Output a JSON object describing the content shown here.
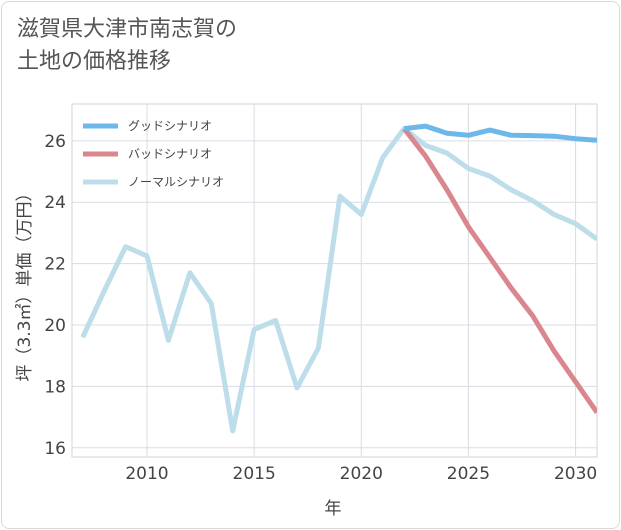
{
  "title": "滋賀県大津市南志賀の\n土地の価格推移",
  "chart_data": {
    "type": "line",
    "xlabel": "年",
    "ylabel": "坪（3.3㎡）単価（万円）",
    "xlim": [
      2006.5,
      2031
    ],
    "ylim": [
      15.7,
      27.2
    ],
    "xticks": [
      2010,
      2015,
      2020,
      2025,
      2030
    ],
    "yticks": [
      16,
      18,
      20,
      22,
      24,
      26
    ],
    "grid": true,
    "legend_position": "top-left",
    "series": [
      {
        "name": "グッドシナリオ",
        "color": "#6cb8ea",
        "x": [
          2022,
          2023,
          2024,
          2025,
          2026,
          2027,
          2028,
          2029,
          2030,
          2031
        ],
        "values": [
          26.4,
          26.48,
          26.25,
          26.18,
          26.35,
          26.18,
          26.17,
          26.15,
          26.07,
          26.02
        ]
      },
      {
        "name": "バッドシナリオ",
        "color": "#d9868e",
        "x": [
          2022,
          2023,
          2024,
          2025,
          2026,
          2027,
          2028,
          2029,
          2030,
          2031
        ],
        "values": [
          26.4,
          25.5,
          24.4,
          23.2,
          22.2,
          21.2,
          20.3,
          19.15,
          18.15,
          17.15
        ]
      },
      {
        "name": "ノーマルシナリオ",
        "color": "#bcdde9",
        "x": [
          2007,
          2008,
          2009,
          2010,
          2011,
          2012,
          2013,
          2014,
          2015,
          2016,
          2017,
          2018,
          2019,
          2020,
          2021,
          2022,
          2023,
          2024,
          2025,
          2026,
          2027,
          2028,
          2029,
          2030,
          2031
        ],
        "values": [
          19.6,
          21.1,
          22.55,
          22.25,
          19.5,
          21.7,
          20.7,
          16.55,
          19.85,
          20.15,
          17.95,
          19.25,
          24.2,
          23.6,
          25.45,
          26.4,
          25.85,
          25.6,
          25.1,
          24.85,
          24.4,
          24.05,
          23.6,
          23.3,
          22.8
        ]
      }
    ]
  }
}
